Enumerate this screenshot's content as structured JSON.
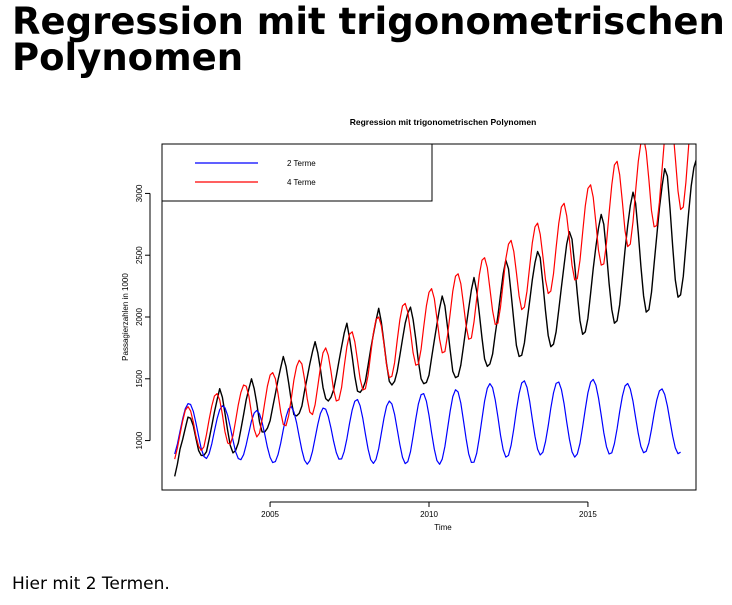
{
  "slide": {
    "title_line1": "Regression mit trigonometrischen",
    "title_line2": "Polynomen",
    "caption": "Hier mit 2 Termen."
  },
  "chart_data": {
    "type": "line",
    "title": "Regression mit trigonometrischen Polynomen",
    "xlabel": "Time",
    "ylabel": "Passagierzahlen in 1000",
    "xlim": [
      2001.6,
      2018.4
    ],
    "ylim": [
      600,
      3400
    ],
    "xticks": [
      2005,
      2010,
      2015
    ],
    "yticks": [
      1000,
      1500,
      2000,
      2500,
      3000
    ],
    "legend_position": "top-left",
    "start": 2002.0,
    "frequency": 12,
    "series": [
      {
        "color": "#000000",
        "values": [
          710,
          810,
          930,
          1010,
          1100,
          1190,
          1180,
          1120,
          1020,
          920,
          880,
          880,
          910,
          1010,
          1120,
          1230,
          1330,
          1420,
          1350,
          1220,
          1080,
          960,
          900,
          920,
          980,
          1090,
          1210,
          1330,
          1420,
          1500,
          1420,
          1300,
          1150,
          1070,
          1070,
          1100,
          1160,
          1270,
          1380,
          1490,
          1590,
          1680,
          1600,
          1470,
          1320,
          1210,
          1200,
          1220,
          1280,
          1400,
          1510,
          1620,
          1720,
          1800,
          1710,
          1580,
          1430,
          1340,
          1320,
          1350,
          1410,
          1520,
          1640,
          1760,
          1870,
          1950,
          1830,
          1680,
          1520,
          1400,
          1390,
          1420,
          1480,
          1610,
          1740,
          1860,
          1970,
          2070,
          1960,
          1790,
          1620,
          1480,
          1450,
          1480,
          1560,
          1690,
          1820,
          1950,
          2030,
          2080,
          1980,
          1820,
          1640,
          1500,
          1460,
          1470,
          1530,
          1670,
          1810,
          1940,
          2070,
          2170,
          2090,
          1920,
          1730,
          1560,
          1510,
          1520,
          1610,
          1760,
          1920,
          2070,
          2220,
          2320,
          2210,
          2030,
          1830,
          1660,
          1600,
          1620,
          1700,
          1860,
          2010,
          2180,
          2350,
          2460,
          2390,
          2190,
          1970,
          1770,
          1680,
          1690,
          1790,
          1960,
          2130,
          2300,
          2440,
          2530,
          2480,
          2270,
          2050,
          1850,
          1760,
          1780,
          1880,
          2060,
          2240,
          2420,
          2590,
          2690,
          2630,
          2420,
          2190,
          1970,
          1860,
          1880,
          1990,
          2190,
          2390,
          2570,
          2720,
          2830,
          2750,
          2520,
          2270,
          2060,
          1950,
          1970,
          2100,
          2320,
          2540,
          2740,
          2900,
          3010,
          2920,
          2680,
          2410,
          2170,
          2040,
          2060,
          2200,
          2430,
          2660,
          2880,
          3060,
          3200,
          3140,
          2880,
          2570,
          2300,
          2160,
          2180,
          2330,
          2580,
          2840,
          3060,
          3210,
          3280,
          3200,
          2960,
          2540,
          2210,
          2160
        ]
      },
      {
        "name": "2 Terme",
        "color": "#0000ff",
        "values": [
          891,
          972,
          1074,
          1177,
          1258,
          1299,
          1292,
          1237,
          1145,
          1036,
          936,
          871,
          855,
          893,
          974,
          1077,
          1177,
          1250,
          1282,
          1265,
          1202,
          1107,
          1002,
          910,
          854,
          845,
          886,
          966,
          1065,
          1159,
          1223,
          1244,
          1216,
          1147,
          1049,
          946,
          864,
          822,
          830,
          886,
          979,
          1089,
          1190,
          1257,
          1274,
          1232,
          1144,
          1032,
          922,
          841,
          809,
          836,
          913,
          1020,
          1131,
          1219,
          1263,
          1254,
          1195,
          1101,
          995,
          903,
          850,
          852,
          912,
          1015,
          1137,
          1248,
          1319,
          1332,
          1282,
          1180,
          1053,
          931,
          845,
          815,
          848,
          935,
          1057,
          1183,
          1279,
          1320,
          1296,
          1212,
          1092,
          966,
          864,
          814,
          830,
          910,
          1035,
          1175,
          1297,
          1371,
          1380,
          1319,
          1204,
          1063,
          931,
          839,
          808,
          849,
          952,
          1094,
          1240,
          1356,
          1412,
          1393,
          1304,
          1166,
          1016,
          892,
          823,
          825,
          897,
          1024,
          1176,
          1320,
          1423,
          1461,
          1428,
          1331,
          1192,
          1044,
          925,
          866,
          880,
          962,
          1095,
          1246,
          1380,
          1466,
          1484,
          1430,
          1317,
          1174,
          1034,
          929,
          883,
          906,
          991,
          1119,
          1262,
          1386,
          1463,
          1474,
          1414,
          1297,
          1151,
          1012,
          909,
          866,
          891,
          978,
          1108,
          1255,
          1386,
          1472,
          1495,
          1449,
          1345,
          1206,
          1064,
          950,
          891,
          901,
          975,
          1096,
          1235,
          1360,
          1442,
          1462,
          1417,
          1318,
          1187,
          1055,
          952,
          902,
          913,
          981,
          1090,
          1216,
          1329,
          1402,
          1418,
          1374,
          1280,
          1158,
          1036,
          941,
          894,
          906
        ]
      },
      {
        "name": "4 Terme",
        "color": "#ff0000",
        "values": [
          850,
          940,
          1050,
          1160,
          1245,
          1275,
          1240,
          1150,
          1040,
          955,
          920,
          950,
          1050,
          1170,
          1280,
          1360,
          1380,
          1330,
          1210,
          1070,
          980,
          970,
          1040,
          1160,
          1290,
          1390,
          1450,
          1440,
          1360,
          1220,
          1090,
          1030,
          1060,
          1170,
          1310,
          1440,
          1530,
          1550,
          1500,
          1380,
          1230,
          1130,
          1120,
          1200,
          1340,
          1490,
          1600,
          1650,
          1620,
          1500,
          1340,
          1230,
          1210,
          1290,
          1440,
          1590,
          1710,
          1750,
          1690,
          1560,
          1410,
          1320,
          1330,
          1430,
          1600,
          1760,
          1860,
          1880,
          1800,
          1650,
          1500,
          1410,
          1420,
          1530,
          1700,
          1870,
          1980,
          2000,
          1930,
          1780,
          1610,
          1510,
          1520,
          1630,
          1810,
          1980,
          2090,
          2110,
          2040,
          1880,
          1710,
          1610,
          1620,
          1740,
          1920,
          2090,
          2200,
          2230,
          2150,
          1990,
          1820,
          1710,
          1720,
          1850,
          2030,
          2210,
          2330,
          2350,
          2270,
          2110,
          1930,
          1820,
          1830,
          1960,
          2150,
          2340,
          2460,
          2480,
          2400,
          2230,
          2050,
          1940,
          1950,
          2080,
          2280,
          2470,
          2590,
          2620,
          2530,
          2360,
          2170,
          2060,
          2080,
          2210,
          2410,
          2600,
          2730,
          2760,
          2670,
          2490,
          2300,
          2190,
          2210,
          2350,
          2560,
          2760,
          2890,
          2920,
          2820,
          2630,
          2420,
          2300,
          2310,
          2460,
          2680,
          2900,
          3040,
          3070,
          2970,
          2760,
          2540,
          2420,
          2430,
          2600,
          2840,
          3070,
          3230,
          3260,
          3150,
          2930,
          2700,
          2570,
          2590,
          2770,
          3020,
          3260,
          3410,
          3450,
          3340,
          3110,
          2860,
          2730,
          2740,
          2930,
          3200,
          3460,
          3620,
          3660,
          3540,
          3290,
          3020,
          2870,
          2890,
          3090,
          3380,
          3660
        ]
      }
    ]
  }
}
